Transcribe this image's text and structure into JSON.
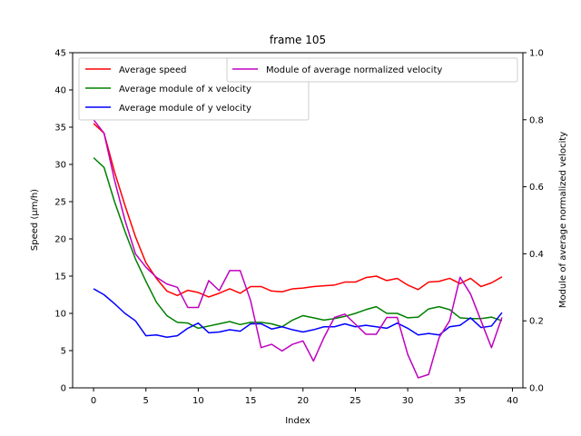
{
  "chart_data": {
    "type": "line",
    "title": "frame 105",
    "xlabel": "Index",
    "ylabel": "Speed (μm/h)",
    "y2label": "Module of average normalized velocity",
    "xlim": [
      -2,
      41
    ],
    "ylim": [
      0,
      45
    ],
    "y2lim": [
      0,
      1.0
    ],
    "xticks": [
      0,
      5,
      10,
      15,
      20,
      25,
      30,
      35,
      40
    ],
    "yticks": [
      0,
      5,
      10,
      15,
      20,
      25,
      30,
      35,
      40,
      45
    ],
    "y2ticks": [
      "0.0",
      "0.2",
      "0.4",
      "0.6",
      "0.8",
      "1.0"
    ],
    "grid": false,
    "legend_left_placement": "top-left",
    "legend_right_placement": "top-right",
    "x": [
      0,
      1,
      2,
      3,
      4,
      5,
      6,
      7,
      8,
      9,
      10,
      11,
      12,
      13,
      14,
      15,
      16,
      17,
      18,
      19,
      20,
      21,
      22,
      23,
      24,
      25,
      26,
      27,
      28,
      29,
      30,
      31,
      32,
      33,
      34,
      35,
      36,
      37,
      38,
      39
    ],
    "series": [
      {
        "name": "Average speed",
        "axis": "left",
        "color": "#ff0000",
        "values": [
          35.5,
          34.2,
          29.0,
          24.5,
          20.3,
          16.8,
          14.7,
          13.0,
          12.4,
          13.1,
          12.8,
          12.2,
          12.7,
          13.3,
          12.7,
          13.6,
          13.6,
          13.0,
          12.9,
          13.3,
          13.4,
          13.6,
          13.7,
          13.8,
          14.2,
          14.2,
          14.8,
          15.0,
          14.4,
          14.7,
          13.8,
          13.2,
          14.2,
          14.3,
          14.7,
          14.0,
          14.7,
          13.6,
          14.1,
          14.9
        ]
      },
      {
        "name": "Average module of x velocity",
        "axis": "left",
        "color": "#008000",
        "values": [
          30.9,
          29.6,
          25.0,
          21.0,
          17.3,
          14.3,
          11.5,
          9.7,
          8.8,
          8.7,
          8.0,
          8.3,
          8.6,
          8.9,
          8.5,
          8.8,
          8.8,
          8.6,
          8.2,
          9.1,
          9.7,
          9.4,
          9.1,
          9.3,
          9.6,
          10.0,
          10.5,
          10.9,
          10.0,
          10.0,
          9.4,
          9.5,
          10.6,
          10.9,
          10.5,
          9.4,
          9.3,
          9.3,
          9.5,
          9.0
        ]
      },
      {
        "name": "Average module of y velocity",
        "axis": "left",
        "color": "#0000ff",
        "values": [
          13.3,
          12.5,
          11.3,
          10.0,
          9.0,
          7.0,
          7.1,
          6.8,
          7.0,
          8.0,
          8.7,
          7.4,
          7.5,
          7.8,
          7.6,
          8.6,
          8.6,
          7.9,
          8.2,
          7.8,
          7.5,
          7.8,
          8.2,
          8.2,
          8.6,
          8.2,
          8.4,
          8.2,
          8.0,
          8.7,
          8.0,
          7.1,
          7.3,
          7.1,
          8.2,
          8.4,
          9.4,
          8.1,
          8.3,
          10.1
        ]
      },
      {
        "name": "Module of average normalized velocity",
        "axis": "right",
        "color": "#bf00bf",
        "values": [
          0.8,
          0.76,
          0.62,
          0.5,
          0.4,
          0.36,
          0.33,
          0.31,
          0.3,
          0.24,
          0.24,
          0.32,
          0.29,
          0.35,
          0.35,
          0.26,
          0.12,
          0.13,
          0.11,
          0.13,
          0.14,
          0.08,
          0.15,
          0.21,
          0.22,
          0.19,
          0.16,
          0.16,
          0.21,
          0.21,
          0.1,
          0.03,
          0.04,
          0.15,
          0.2,
          0.33,
          0.28,
          0.2,
          0.12,
          0.21
        ]
      }
    ]
  }
}
